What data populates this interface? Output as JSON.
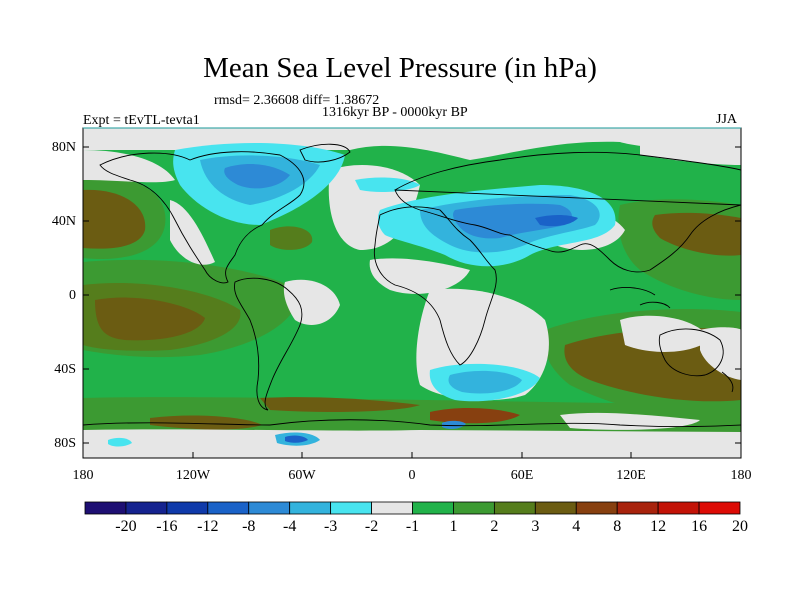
{
  "header": {
    "title": "Mean Sea Level Pressure (in hPa)",
    "stats": "rmsd= 2.36608 diff= 1.38672",
    "period": "1316kyr BP - 0000kyr BP",
    "experiment": "Expt = tEvTL-tevta1",
    "season": "JJA"
  },
  "axes": {
    "lat_labels": [
      "80N",
      "40N",
      "0",
      "40S",
      "80S"
    ],
    "lon_labels": [
      "180",
      "120W",
      "60W",
      "0",
      "60E",
      "120E",
      "180"
    ]
  },
  "colorbar": {
    "colors": [
      "#1e0f73",
      "#15238f",
      "#0f3aaa",
      "#1a62c8",
      "#2d8ad6",
      "#33b3dd",
      "#48e4ef",
      "#e6e6e6",
      "#21b24a",
      "#3c9a32",
      "#557d1c",
      "#6b5c12",
      "#874010",
      "#a8230d",
      "#c31307",
      "#dd0b05"
    ],
    "labels": [
      "-20",
      "-16",
      "-12",
      "-8",
      "-4",
      "-3",
      "-2",
      "-1",
      "1",
      "2",
      "3",
      "4",
      "8",
      "12",
      "16",
      "20"
    ]
  }
}
